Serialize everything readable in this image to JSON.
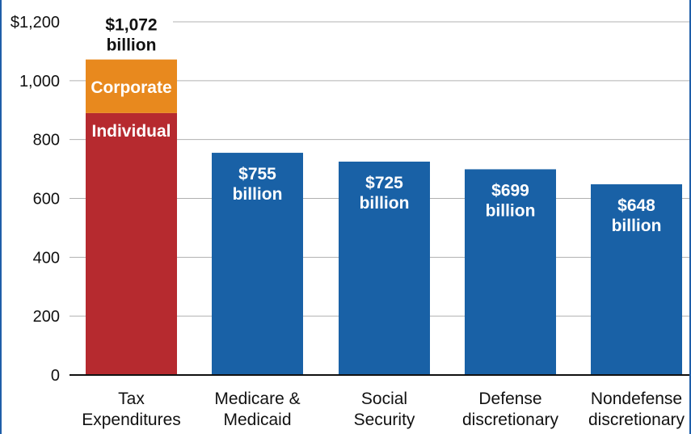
{
  "chart_data": {
    "type": "bar",
    "y_tick_labels": [
      "0",
      "200",
      "400",
      "600",
      "800",
      "1,000",
      "$1,200"
    ],
    "y_ticks": [
      0,
      200,
      400,
      600,
      800,
      1000,
      1200
    ],
    "ylim": [
      0,
      1200
    ],
    "grid": true,
    "categories": [
      [
        "Tax",
        "Expenditures"
      ],
      [
        "Medicare &",
        "Medicaid"
      ],
      [
        "Social",
        "Security"
      ],
      [
        "Defense",
        "discretionary"
      ],
      [
        "Nondefense",
        "discretionary"
      ]
    ],
    "stacked_bar": {
      "category_index": 0,
      "total": 1072,
      "total_label": [
        "$1,072",
        "billion"
      ],
      "segments": [
        {
          "name": "Individual",
          "value": 890,
          "color": "#b62a2f"
        },
        {
          "name": "Corporate",
          "value": 182,
          "color": "#e8891e"
        }
      ]
    },
    "bars": [
      {
        "category_index": 1,
        "value": 755,
        "label": [
          "$755",
          "billion"
        ]
      },
      {
        "category_index": 2,
        "value": 725,
        "label": [
          "$725",
          "billion"
        ]
      },
      {
        "category_index": 3,
        "value": 699,
        "label": [
          "$699",
          "billion"
        ]
      },
      {
        "category_index": 4,
        "value": 648,
        "label": [
          "$648",
          "billion"
        ]
      }
    ],
    "colors": {
      "bar": "#1961a6",
      "grid": "#b0b0b0",
      "axis": "#111111"
    }
  }
}
